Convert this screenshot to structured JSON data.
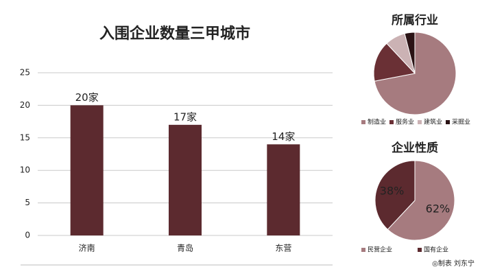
{
  "chart_data": [
    {
      "type": "bar",
      "title": "入围企业数量三甲城市",
      "categories": [
        "济南",
        "青岛",
        "东营"
      ],
      "values": [
        20,
        17,
        14
      ],
      "value_labels": [
        "20家",
        "17家",
        "14家"
      ],
      "color": "#5c2a2f",
      "ylim": [
        0,
        25
      ],
      "yticks": [
        0,
        5,
        10,
        15,
        20,
        25
      ],
      "grid": true
    },
    {
      "type": "pie",
      "title": "所属行业",
      "categories": [
        "制造业",
        "服务业",
        "建筑业",
        "采掘业"
      ],
      "values": [
        72,
        16,
        8,
        4
      ],
      "colors": [
        "#a67b7f",
        "#6a3035",
        "#cbb2b4",
        "#2b1315"
      ],
      "legend": "bottom"
    },
    {
      "type": "pie",
      "title": "企业性质",
      "categories": [
        "民营企业",
        "国有企业"
      ],
      "values": [
        62,
        38
      ],
      "value_labels": [
        "62%",
        "38%"
      ],
      "colors": [
        "#a67b7f",
        "#5c2a2f"
      ],
      "legend": "bottom"
    }
  ],
  "credit": "◎制表 刘东宁"
}
